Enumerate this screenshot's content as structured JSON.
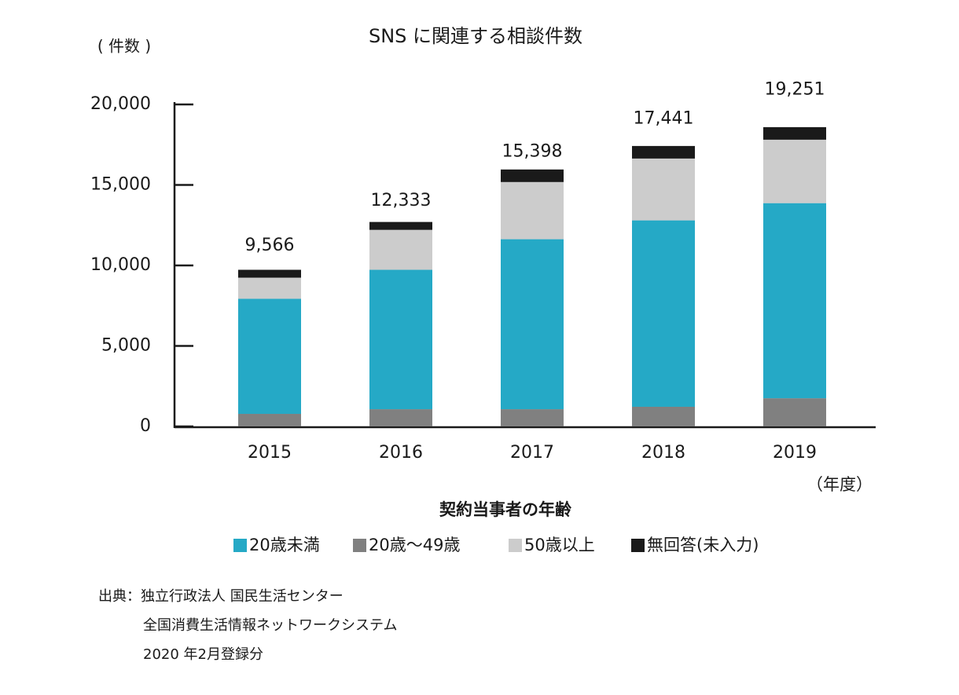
{
  "chart_data": {
    "type": "stacked_bar",
    "title": "SNS に関連する相談件数",
    "y_unit": "( 件数 )",
    "x_unit": "（年度）",
    "legend_title": "契約当事者の年齢",
    "categories": [
      "2015",
      "2016",
      "2017",
      "2018",
      "2019"
    ],
    "series": [
      {
        "name": "20歳未満",
        "color": "#25a9c6",
        "values": [
          7150,
          8660,
          10560,
          11580,
          12120
        ]
      },
      {
        "name": "20歳～49歳",
        "color": "#808080",
        "values": [
          780,
          1070,
          1070,
          1220,
          1750
        ]
      },
      {
        "name": "50歳以上",
        "color": "#cccccc",
        "values": [
          1310,
          2480,
          3550,
          3840,
          3940
        ]
      },
      {
        "name": "無回答(未入力)",
        "color": "#1a1a1a",
        "values": [
          490,
          490,
          780,
          780,
          780
        ]
      }
    ],
    "totals": {
      "values": [
        9566,
        12333,
        15398,
        17441,
        19251
      ],
      "value_labels": [
        "9,566",
        "12,333",
        "15,398",
        "17,441",
        "19,251"
      ]
    },
    "ylim": [
      0,
      20000
    ],
    "yticks": [
      0,
      {
        "value": 5000,
        "label": "5,000"
      },
      {
        "value": 10000,
        "label": "10,000"
      },
      {
        "value": 15000,
        "label": "15,000"
      },
      {
        "value": 20000,
        "label": "20,000"
      }
    ],
    "source": [
      "出典：独立行政法人 国民生活センター",
      "全国消費生活情報ネットワークシステム",
      "2020 年2月登録分"
    ]
  }
}
